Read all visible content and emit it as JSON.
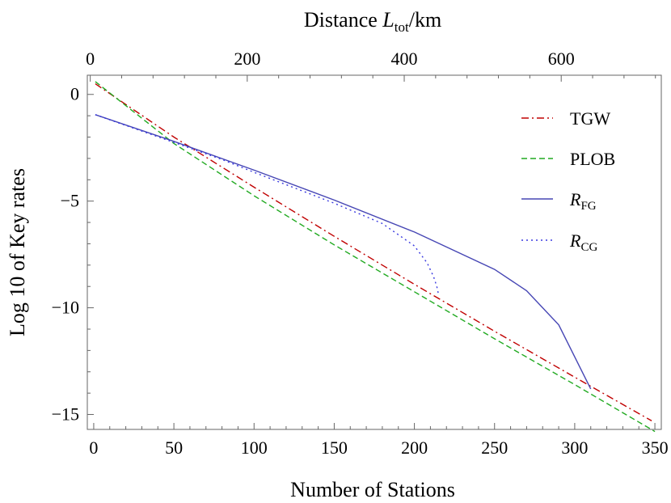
{
  "chart_data": {
    "type": "line",
    "xlabel": "Number of Stations",
    "ylabel": "Log 10 of Key rates",
    "top_axis": {
      "label_prefix": "Distance ",
      "label_var": "L",
      "label_sub": "tot",
      "label_suffix": "/km",
      "ticks": [
        0,
        200,
        400,
        600
      ],
      "range": [
        -3.75,
        727.5
      ]
    },
    "xlim": [
      -4,
      354
    ],
    "ylim": [
      -15.7,
      0.9
    ],
    "xticks": [
      0,
      50,
      100,
      150,
      200,
      250,
      300,
      350
    ],
    "yticks": [
      0,
      -5,
      -10,
      -15
    ],
    "grid": false,
    "legend_position": "top-right",
    "series": [
      {
        "name": "TGW",
        "color": "#c00000",
        "dash": "dash-dot",
        "x": [
          1,
          50,
          100,
          150,
          200,
          250,
          300,
          348
        ],
        "y": [
          0.5,
          -2.0,
          -4.35,
          -6.65,
          -8.9,
          -11.1,
          -13.25,
          -15.3
        ]
      },
      {
        "name": "PLOB",
        "color": "#22aa22",
        "dash": "dashed",
        "x": [
          1,
          50,
          100,
          150,
          200,
          250,
          300,
          350
        ],
        "y": [
          0.6,
          -2.3,
          -4.75,
          -7.05,
          -9.25,
          -11.45,
          -13.6,
          -15.8
        ]
      },
      {
        "name": "R",
        "sub": "FG",
        "color": "#4646b4",
        "dash": "solid",
        "x": [
          1,
          50,
          100,
          150,
          200,
          250,
          270,
          290,
          310
        ],
        "y": [
          -0.95,
          -2.2,
          -3.55,
          -4.95,
          -6.45,
          -8.2,
          -9.2,
          -10.8,
          -13.8
        ]
      },
      {
        "name": "R",
        "sub": "CG",
        "color": "#3a3ae0",
        "dash": "dotted",
        "x": [
          1,
          50,
          80,
          100,
          150,
          180,
          200,
          208,
          212,
          214,
          215
        ],
        "y": [
          -0.95,
          -2.25,
          -3.05,
          -3.65,
          -5.1,
          -6.05,
          -7.1,
          -7.9,
          -8.55,
          -9.0,
          -9.35
        ]
      }
    ]
  }
}
